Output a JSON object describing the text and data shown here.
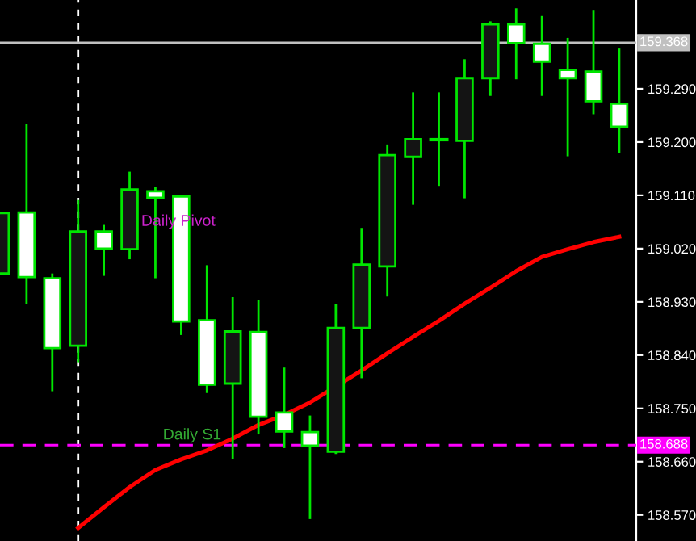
{
  "chart_data": {
    "type": "candlestick",
    "categories": [
      null,
      null,
      null,
      null,
      null,
      null,
      null,
      null,
      null,
      null,
      null,
      null,
      null,
      null,
      null,
      null,
      null,
      null,
      null,
      null,
      null,
      null,
      null,
      null,
      null
    ],
    "ohlc": [
      [
        158.978,
        159.08,
        158.978,
        159.08
      ],
      [
        159.081,
        159.231,
        158.927,
        158.972
      ],
      [
        158.97,
        158.978,
        158.779,
        158.852
      ],
      [
        158.856,
        159.102,
        158.828,
        159.049
      ],
      [
        159.049,
        159.06,
        158.974,
        159.02
      ],
      [
        159.019,
        159.15,
        159.002,
        159.12
      ],
      [
        159.117,
        159.124,
        158.97,
        159.106
      ],
      [
        159.108,
        159.108,
        158.874,
        158.897
      ],
      [
        158.899,
        158.992,
        158.776,
        158.79
      ],
      [
        158.792,
        158.938,
        158.665,
        158.88
      ],
      [
        158.879,
        158.933,
        158.706,
        158.736
      ],
      [
        158.743,
        158.819,
        158.683,
        158.711
      ],
      [
        158.71,
        158.738,
        158.563,
        158.687
      ],
      [
        158.677,
        158.926,
        158.673,
        158.886
      ],
      [
        158.886,
        159.055,
        158.801,
        158.993
      ],
      [
        158.99,
        159.196,
        158.939,
        159.178
      ],
      [
        159.175,
        159.284,
        159.094,
        159.205
      ],
      [
        159.204,
        159.284,
        159.126,
        159.204
      ],
      [
        159.202,
        159.34,
        159.105,
        159.308
      ],
      [
        159.308,
        159.404,
        159.278,
        159.399
      ],
      [
        159.399,
        159.426,
        159.306,
        159.367
      ],
      [
        159.366,
        159.413,
        159.278,
        159.336
      ],
      [
        159.322,
        159.376,
        159.176,
        159.308
      ],
      [
        159.319,
        159.422,
        159.247,
        159.269
      ],
      [
        159.265,
        159.358,
        159.181,
        159.226
      ]
    ],
    "color": "#00e600",
    "series": [
      {
        "type": "line",
        "color": "#ff0000",
        "values": [
          null,
          null,
          null,
          158.548,
          158.583,
          158.617,
          158.646,
          158.664,
          158.679,
          158.699,
          158.722,
          158.739,
          158.76,
          null,
          158.814,
          158.843,
          158.871,
          158.898,
          158.927,
          158.954,
          158.982,
          159.006,
          159.019,
          159.031,
          159.04
        ]
      }
    ],
    "ylim": [
      158.526,
      159.44
    ],
    "yticks": [
      {
        "value": 159.38,
        "label": null
      },
      {
        "value": 159.29,
        "label": "159.290"
      },
      {
        "value": 159.2,
        "label": "159.200"
      },
      {
        "value": 159.11,
        "label": "159.110"
      },
      {
        "value": 159.02,
        "label": "159.020"
      },
      {
        "value": 158.93,
        "label": "158.930"
      },
      {
        "value": 158.84,
        "label": "158.840"
      },
      {
        "value": 158.75,
        "label": "158.750"
      },
      {
        "value": 158.66,
        "label": "158.660"
      },
      {
        "value": 158.57,
        "label": "158.570"
      }
    ],
    "tick_labels": "y",
    "grid": false,
    "ref_lines": [
      {
        "axis": "y",
        "value": 159.368,
        "label": "159.368",
        "color": "#c0c0c0",
        "line_style": "solid"
      },
      {
        "axis": "y",
        "value": 158.688,
        "label": "158.688",
        "color": "#ff00ff",
        "line_style": "dashed"
      }
    ],
    "annotations": [
      {
        "text": "Daily Pivot",
        "y": 159.053
      },
      {
        "text": "Daily S1",
        "y": 158.692
      }
    ]
  }
}
